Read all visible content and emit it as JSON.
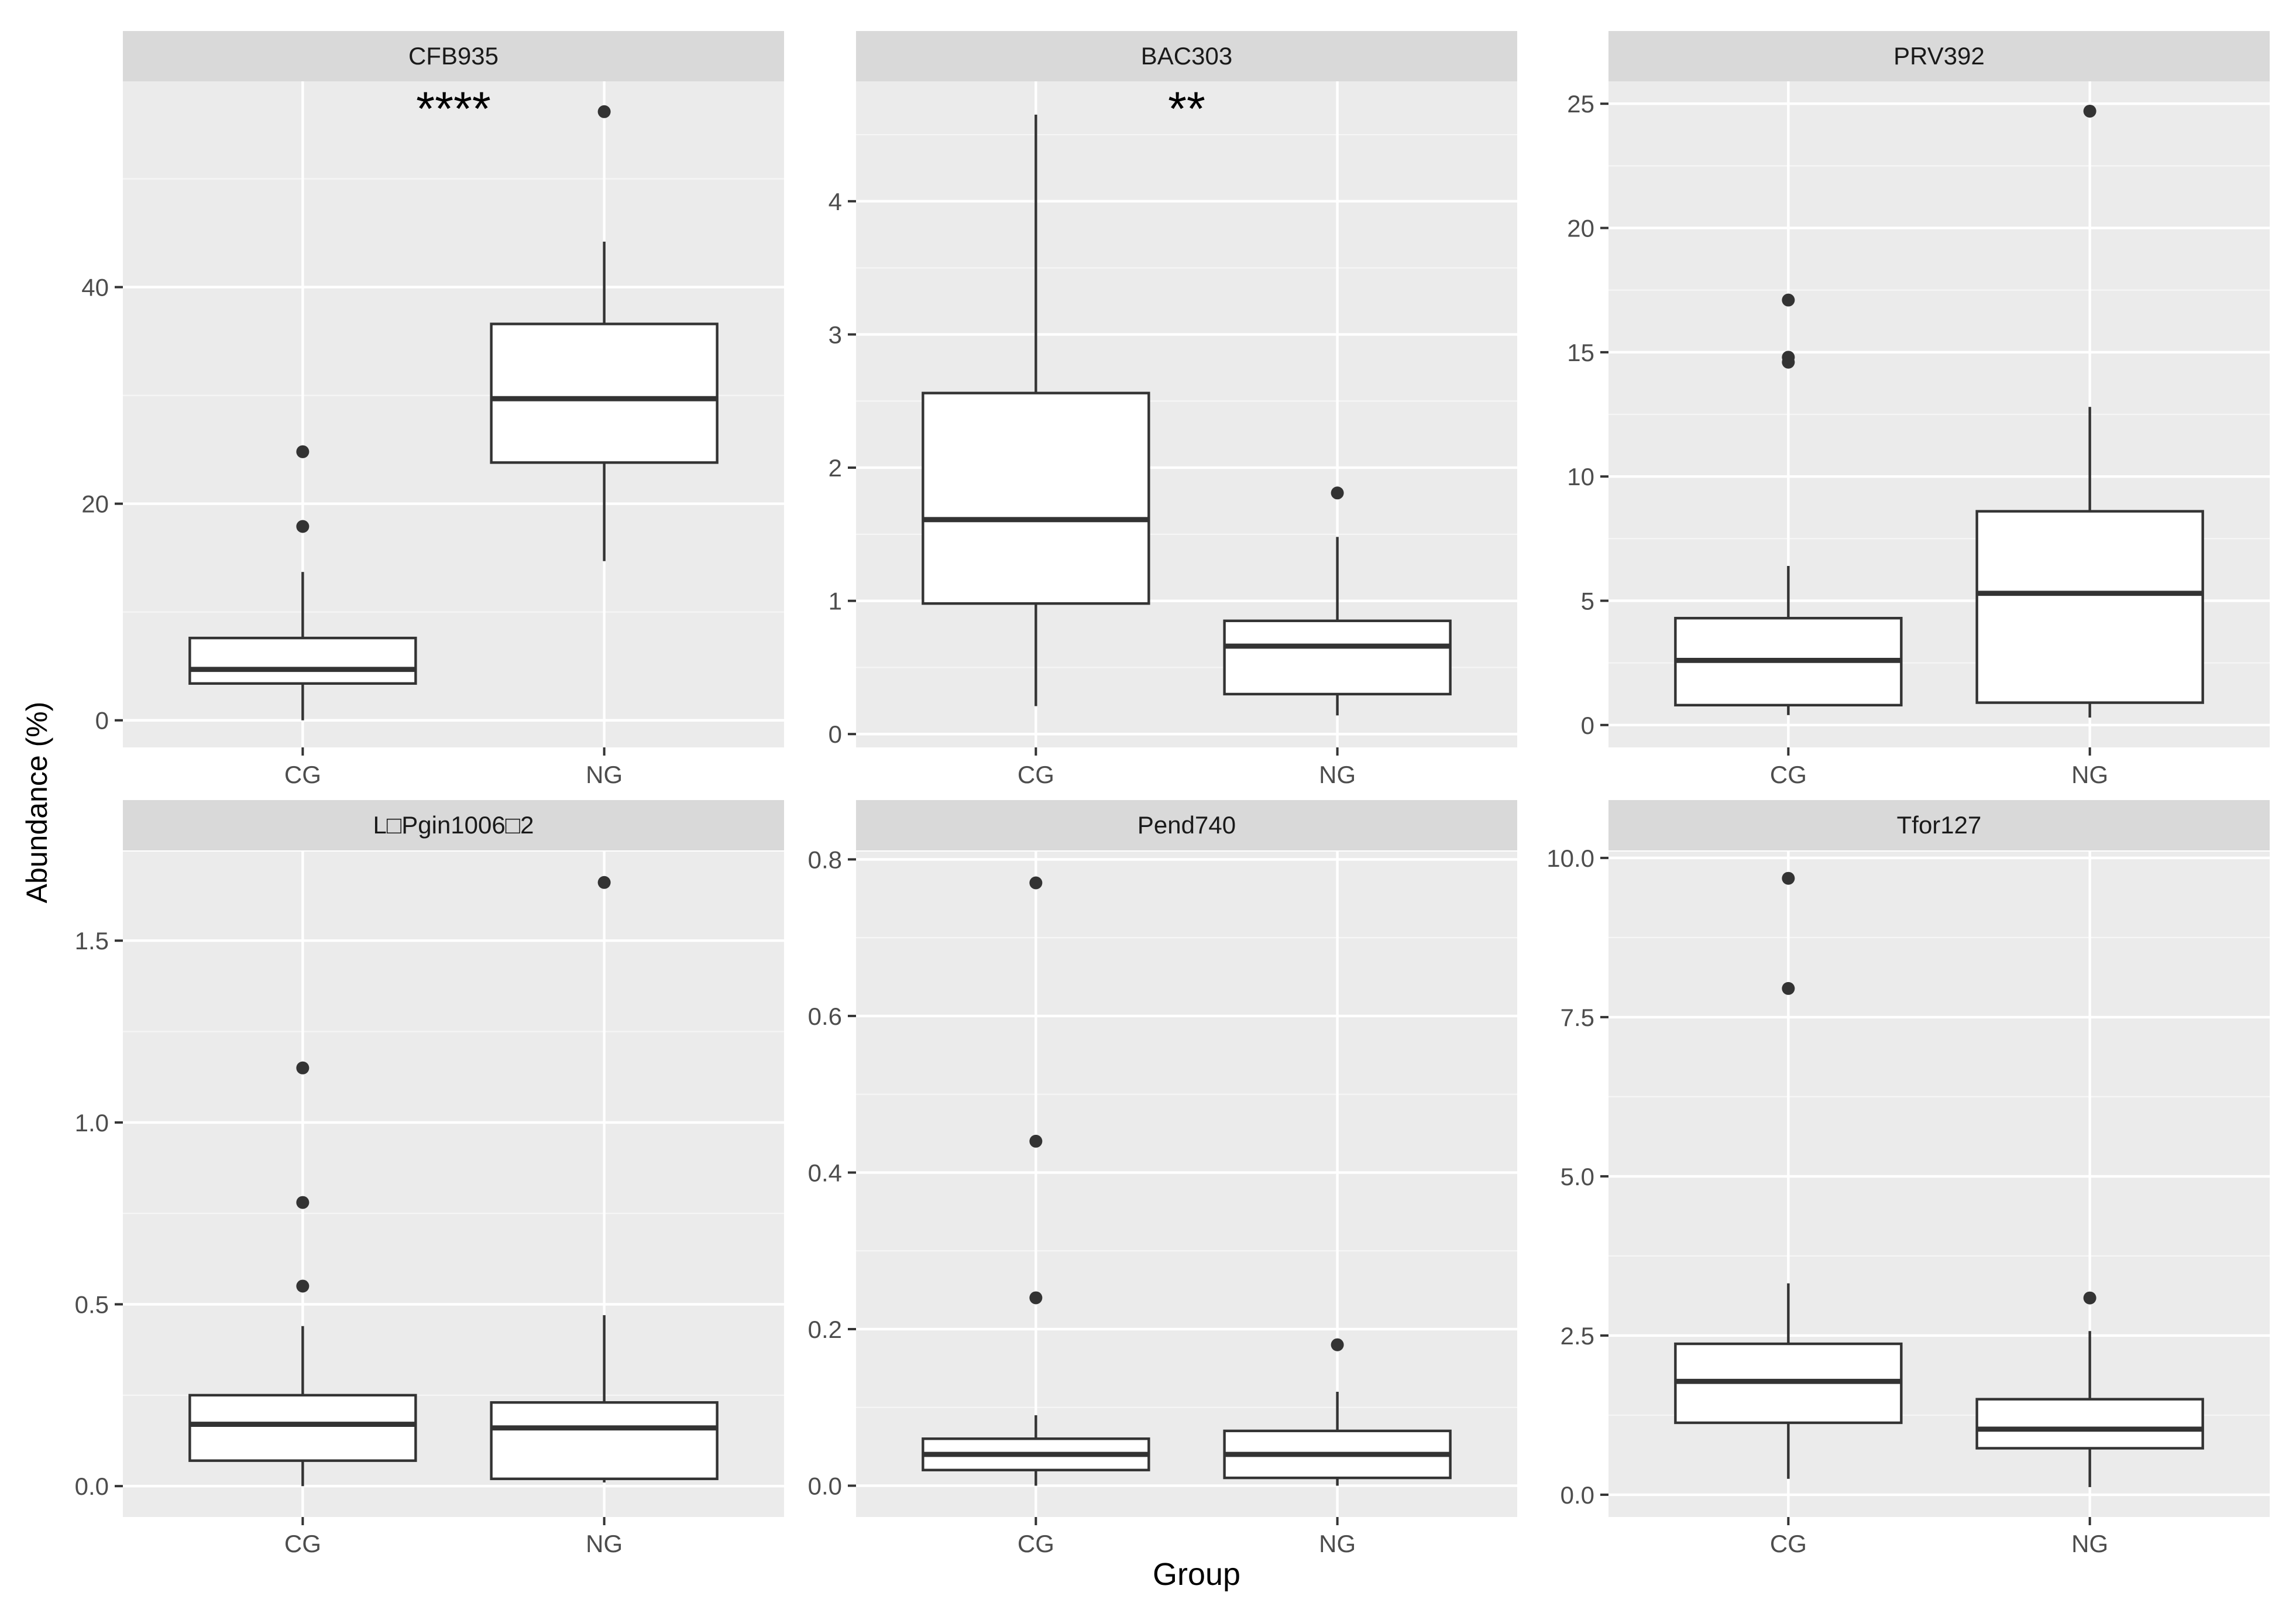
{
  "figure": {
    "ylabel": "Abundance (%)",
    "xlabel": "Group"
  },
  "chart_data": [
    {
      "type": "boxplot",
      "title": "CFB935",
      "categories": [
        "CG",
        "NG"
      ],
      "ylim": [
        -2.5,
        59
      ],
      "yticks": [
        0,
        20,
        40
      ],
      "tick_labels": [
        "0",
        "20",
        "40"
      ],
      "minor_ticks": [
        10,
        30,
        50
      ],
      "significance": "****",
      "boxes": [
        {
          "group": "CG",
          "whisker_low": 0,
          "q1": 3.4,
          "median": 4.7,
          "q3": 7.6,
          "whisker_high": 13.7,
          "outliers": [
            17.9,
            24.8
          ]
        },
        {
          "group": "NG",
          "whisker_low": 14.7,
          "q1": 23.8,
          "median": 29.7,
          "q3": 36.6,
          "whisker_high": 44.2,
          "outliers": [
            56.2
          ]
        }
      ]
    },
    {
      "type": "boxplot",
      "title": "BAC303",
      "categories": [
        "CG",
        "NG"
      ],
      "ylim": [
        -0.1,
        4.9
      ],
      "yticks": [
        0,
        1,
        2,
        3,
        4
      ],
      "tick_labels": [
        "0",
        "1",
        "2",
        "3",
        "4"
      ],
      "minor_ticks": [
        0.5,
        1.5,
        2.5,
        3.5,
        4.5
      ],
      "significance": "**",
      "boxes": [
        {
          "group": "CG",
          "whisker_low": 0.21,
          "q1": 0.98,
          "median": 1.61,
          "q3": 2.56,
          "whisker_high": 4.65,
          "outliers": []
        },
        {
          "group": "NG",
          "whisker_low": 0.14,
          "q1": 0.3,
          "median": 0.66,
          "q3": 0.85,
          "whisker_high": 1.48,
          "outliers": [
            1.81
          ]
        }
      ]
    },
    {
      "type": "boxplot",
      "title": "PRV392",
      "categories": [
        "CG",
        "NG"
      ],
      "ylim": [
        -0.9,
        25.9
      ],
      "yticks": [
        0,
        5,
        10,
        15,
        20,
        25
      ],
      "tick_labels": [
        "0",
        "5",
        "10",
        "15",
        "20",
        "25"
      ],
      "minor_ticks": [
        2.5,
        7.5,
        12.5,
        17.5,
        22.5
      ],
      "significance": "",
      "boxes": [
        {
          "group": "CG",
          "whisker_low": 0.4,
          "q1": 0.8,
          "median": 2.6,
          "q3": 4.3,
          "whisker_high": 6.4,
          "outliers": [
            14.6,
            14.8,
            17.1
          ]
        },
        {
          "group": "NG",
          "whisker_low": 0.3,
          "q1": 0.9,
          "median": 5.3,
          "q3": 8.6,
          "whisker_high": 12.8,
          "outliers": [
            24.7
          ]
        }
      ]
    },
    {
      "type": "boxplot",
      "title": "L□Pgin1006□2",
      "categories": [
        "CG",
        "NG"
      ],
      "ylim": [
        -0.085,
        1.745
      ],
      "yticks": [
        0,
        0.5,
        1,
        1.5
      ],
      "tick_labels": [
        "0.0",
        "0.5",
        "1.0",
        "1.5"
      ],
      "minor_ticks": [
        0.25,
        0.75,
        1.25
      ],
      "significance": "",
      "boxes": [
        {
          "group": "CG",
          "whisker_low": 0,
          "q1": 0.07,
          "median": 0.17,
          "q3": 0.25,
          "whisker_high": 0.44,
          "outliers": [
            0.55,
            0.78,
            1.15
          ]
        },
        {
          "group": "NG",
          "whisker_low": 0.01,
          "q1": 0.02,
          "median": 0.16,
          "q3": 0.23,
          "whisker_high": 0.47,
          "outliers": [
            1.66
          ]
        }
      ]
    },
    {
      "type": "boxplot",
      "title": "Pend740",
      "categories": [
        "CG",
        "NG"
      ],
      "ylim": [
        -0.04,
        0.81
      ],
      "yticks": [
        0,
        0.2,
        0.4,
        0.6,
        0.8
      ],
      "tick_labels": [
        "0.0",
        "0.2",
        "0.4",
        "0.6",
        "0.8"
      ],
      "minor_ticks": [
        0.1,
        0.3,
        0.5,
        0.7
      ],
      "significance": "",
      "boxes": [
        {
          "group": "CG",
          "whisker_low": 0,
          "q1": 0.02,
          "median": 0.04,
          "q3": 0.06,
          "whisker_high": 0.09,
          "outliers": [
            0.24,
            0.44,
            0.77
          ]
        },
        {
          "group": "NG",
          "whisker_low": 0,
          "q1": 0.01,
          "median": 0.04,
          "q3": 0.07,
          "whisker_high": 0.12,
          "outliers": [
            0.18
          ]
        }
      ]
    },
    {
      "type": "boxplot",
      "title": "Tfor127",
      "categories": [
        "CG",
        "NG"
      ],
      "ylim": [
        -0.35,
        10.1
      ],
      "yticks": [
        0,
        2.5,
        5,
        7.5,
        10
      ],
      "tick_labels": [
        "0.0",
        "2.5",
        "5.0",
        "7.5",
        "10.0"
      ],
      "minor_ticks": [
        1.25,
        3.75,
        6.25,
        8.75
      ],
      "significance": "",
      "boxes": [
        {
          "group": "CG",
          "whisker_low": 0.25,
          "q1": 1.13,
          "median": 1.78,
          "q3": 2.37,
          "whisker_high": 3.32,
          "outliers": [
            7.95,
            9.68
          ]
        },
        {
          "group": "NG",
          "whisker_low": 0.12,
          "q1": 0.73,
          "median": 1.03,
          "q3": 1.5,
          "whisker_high": 2.57,
          "outliers": [
            3.09
          ]
        }
      ]
    }
  ]
}
